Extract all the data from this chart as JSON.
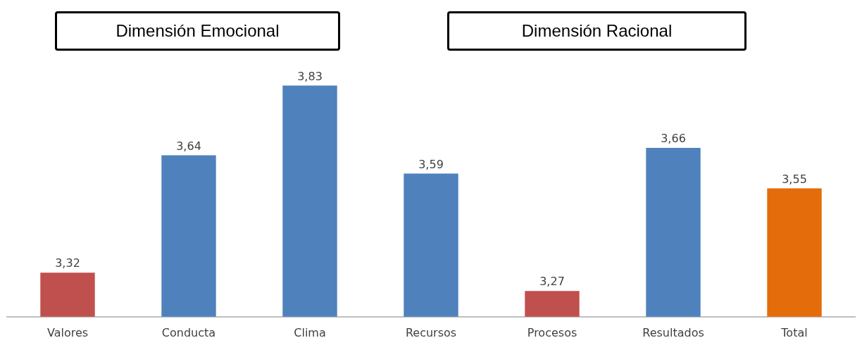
{
  "chart_data": {
    "type": "bar",
    "categories": [
      "Valores",
      "Conducta",
      "Clima",
      "Recursos",
      "Procesos",
      "Resultados",
      "Total"
    ],
    "values": [
      3.32,
      3.64,
      3.83,
      3.59,
      3.27,
      3.66,
      3.55
    ],
    "colors": [
      "#c0504d",
      "#4f81bd",
      "#4f81bd",
      "#4f81bd",
      "#c0504d",
      "#4f81bd",
      "#e46c0a"
    ],
    "value_labels": [
      "3,32",
      "3,64",
      "3,83",
      "3,59",
      "3,27",
      "3,66",
      "3,55"
    ],
    "tick_labels": "x",
    "grid": false,
    "legend": false,
    "annotations": [
      "Dimensión Emocional",
      "Dimensión Racional"
    ]
  }
}
